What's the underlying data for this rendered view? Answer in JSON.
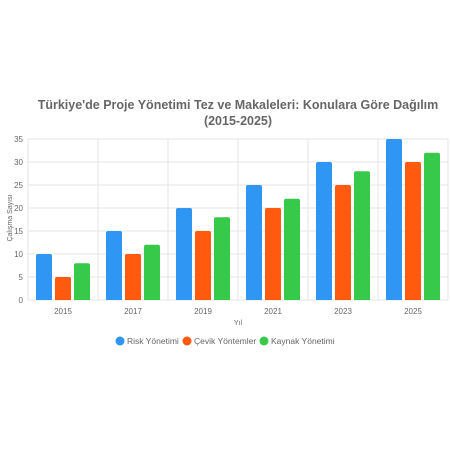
{
  "chart_data": {
    "type": "bar",
    "title": "Türkiye'de Proje Yönetimi Tez ve Makaleleri: Konulara Göre Dağılım",
    "subtitle": "(2015-2025)",
    "xlabel": "Yıl",
    "ylabel": "Çalışma Sayısı",
    "categories": [
      "2015",
      "2017",
      "2019",
      "2021",
      "2023",
      "2025"
    ],
    "ylim": [
      0,
      35
    ],
    "yticks": [
      0,
      5,
      10,
      15,
      20,
      25,
      30,
      35
    ],
    "grid": true,
    "legend_position": "bottom",
    "series": [
      {
        "name": "Risk Yönetimi",
        "color": "#2f96f3",
        "values": [
          10,
          15,
          20,
          25,
          30,
          35
        ]
      },
      {
        "name": "Çevik Yöntemler",
        "color": "#ff5a0d",
        "values": [
          5,
          10,
          15,
          20,
          25,
          30
        ]
      },
      {
        "name": "Kaynak Yönetimi",
        "color": "#36c94a",
        "values": [
          8,
          12,
          18,
          22,
          28,
          32
        ]
      }
    ]
  }
}
